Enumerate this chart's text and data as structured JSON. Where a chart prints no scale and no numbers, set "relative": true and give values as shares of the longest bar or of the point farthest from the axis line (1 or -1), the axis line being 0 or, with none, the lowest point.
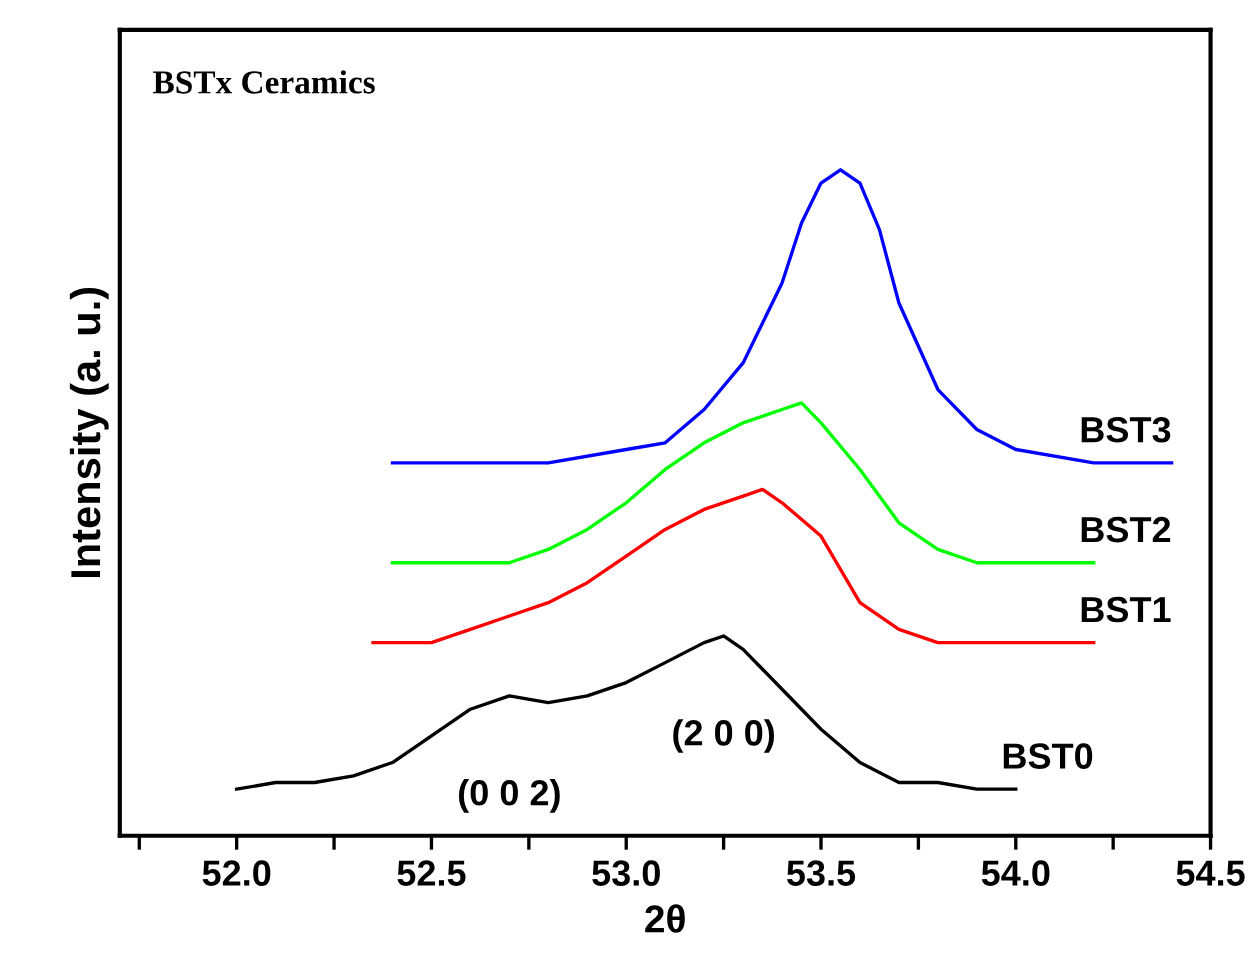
{
  "chart_data": {
    "type": "line",
    "xlabel": "2θ",
    "ylabel": "Intensity (a. u.)",
    "relative": true,
    "xlim": [
      51.7,
      54.5
    ],
    "xticks": [
      {
        "value": 51.75,
        "label": null
      },
      {
        "value": 52,
        "label": "52.0"
      },
      {
        "value": 52.25,
        "label": null
      },
      52.5,
      {
        "value": 52.75,
        "label": null
      },
      {
        "value": 53,
        "label": "53.0"
      },
      {
        "value": 53.25,
        "label": null
      },
      53.5,
      {
        "value": 53.75,
        "label": null
      },
      {
        "value": 54,
        "label": "54.0"
      },
      {
        "value": 54.25,
        "label": null
      },
      54.5
    ],
    "series": [
      {
        "name": "BST0",
        "color": "#000000",
        "x": [
          52.0,
          52.1,
          52.2,
          52.3,
          52.4,
          52.5,
          52.6,
          52.7,
          52.8,
          52.9,
          53.0,
          53.1,
          53.2,
          53.25,
          53.3,
          53.4,
          53.5,
          53.6,
          53.7,
          53.8,
          53.9,
          54.0
        ],
        "values": [
          0.07,
          0.08,
          0.08,
          0.09,
          0.11,
          0.15,
          0.19,
          0.21,
          0.2,
          0.21,
          0.23,
          0.26,
          0.29,
          0.3,
          0.28,
          0.22,
          0.16,
          0.11,
          0.08,
          0.08,
          0.07,
          0.07
        ]
      },
      {
        "name": "BST1",
        "color": "#ff0000",
        "x": [
          52.35,
          52.5,
          52.6,
          52.7,
          52.8,
          52.9,
          53.0,
          53.1,
          53.2,
          53.3,
          53.35,
          53.4,
          53.5,
          53.6,
          53.7,
          53.8,
          53.9,
          54.0,
          54.2
        ],
        "values": [
          0.29,
          0.29,
          0.31,
          0.33,
          0.35,
          0.38,
          0.42,
          0.46,
          0.49,
          0.51,
          0.52,
          0.5,
          0.45,
          0.35,
          0.31,
          0.29,
          0.29,
          0.29,
          0.29
        ]
      },
      {
        "name": "BST2",
        "color": "#00ff00",
        "x": [
          52.4,
          52.6,
          52.7,
          52.8,
          52.9,
          53.0,
          53.1,
          53.2,
          53.3,
          53.4,
          53.45,
          53.5,
          53.6,
          53.7,
          53.8,
          53.9,
          54.0,
          54.2
        ],
        "values": [
          0.41,
          0.41,
          0.41,
          0.43,
          0.46,
          0.5,
          0.55,
          0.59,
          0.62,
          0.64,
          0.65,
          0.62,
          0.55,
          0.47,
          0.43,
          0.41,
          0.41,
          0.41
        ]
      },
      {
        "name": "BST3",
        "color": "#0000ff",
        "x": [
          52.4,
          52.6,
          52.8,
          53.0,
          53.1,
          53.2,
          53.3,
          53.4,
          53.45,
          53.5,
          53.55,
          53.6,
          53.65,
          53.7,
          53.8,
          53.9,
          54.0,
          54.2,
          54.4
        ],
        "values": [
          0.56,
          0.56,
          0.56,
          0.58,
          0.59,
          0.64,
          0.71,
          0.83,
          0.92,
          0.98,
          1.0,
          0.98,
          0.91,
          0.8,
          0.67,
          0.61,
          0.58,
          0.56,
          0.56
        ]
      }
    ],
    "annotations": [
      "BSTx Ceramics",
      {
        "text": "(0 0 2)",
        "x": 52.7,
        "y": 0.21
      },
      {
        "text": "(2 0 0)",
        "x": 53.25,
        "y": 0.3
      }
    ]
  }
}
